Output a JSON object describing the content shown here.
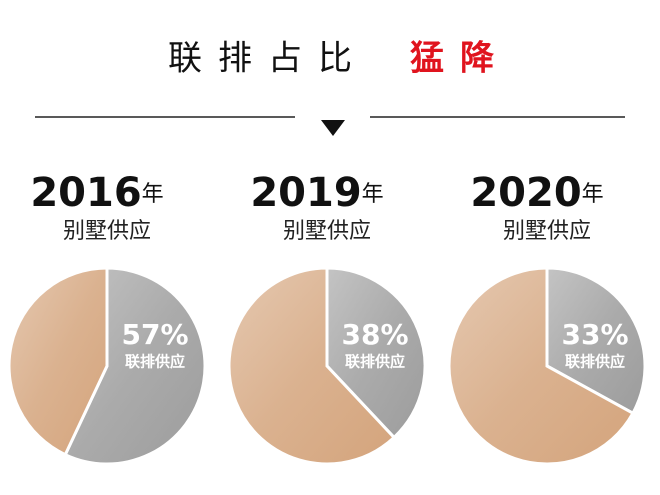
{
  "header": {
    "title": "联排占比",
    "highlight": "猛降"
  },
  "chart_data": [
    {
      "type": "pie",
      "year": "2016",
      "year_suffix": "年",
      "subtitle": "别墅供应",
      "categories": [
        "联排供应",
        null
      ],
      "values": [
        57,
        43
      ],
      "value_labels": [
        "57%",
        null
      ],
      "colors": [
        "#9c9c9c",
        "#d4a47c"
      ]
    },
    {
      "type": "pie",
      "year": "2019",
      "year_suffix": "年",
      "subtitle": "别墅供应",
      "categories": [
        "联排供应",
        null
      ],
      "values": [
        38,
        62
      ],
      "value_labels": [
        "38%",
        null
      ],
      "colors": [
        "#9c9c9c",
        "#d4a47c"
      ]
    },
    {
      "type": "pie",
      "year": "2020",
      "year_suffix": "年",
      "subtitle": "别墅供应",
      "categories": [
        "联排供应",
        null
      ],
      "values": [
        33,
        67
      ],
      "value_labels": [
        "33%",
        null
      ],
      "colors": [
        "#9c9c9c",
        "#d4a47c"
      ]
    }
  ]
}
